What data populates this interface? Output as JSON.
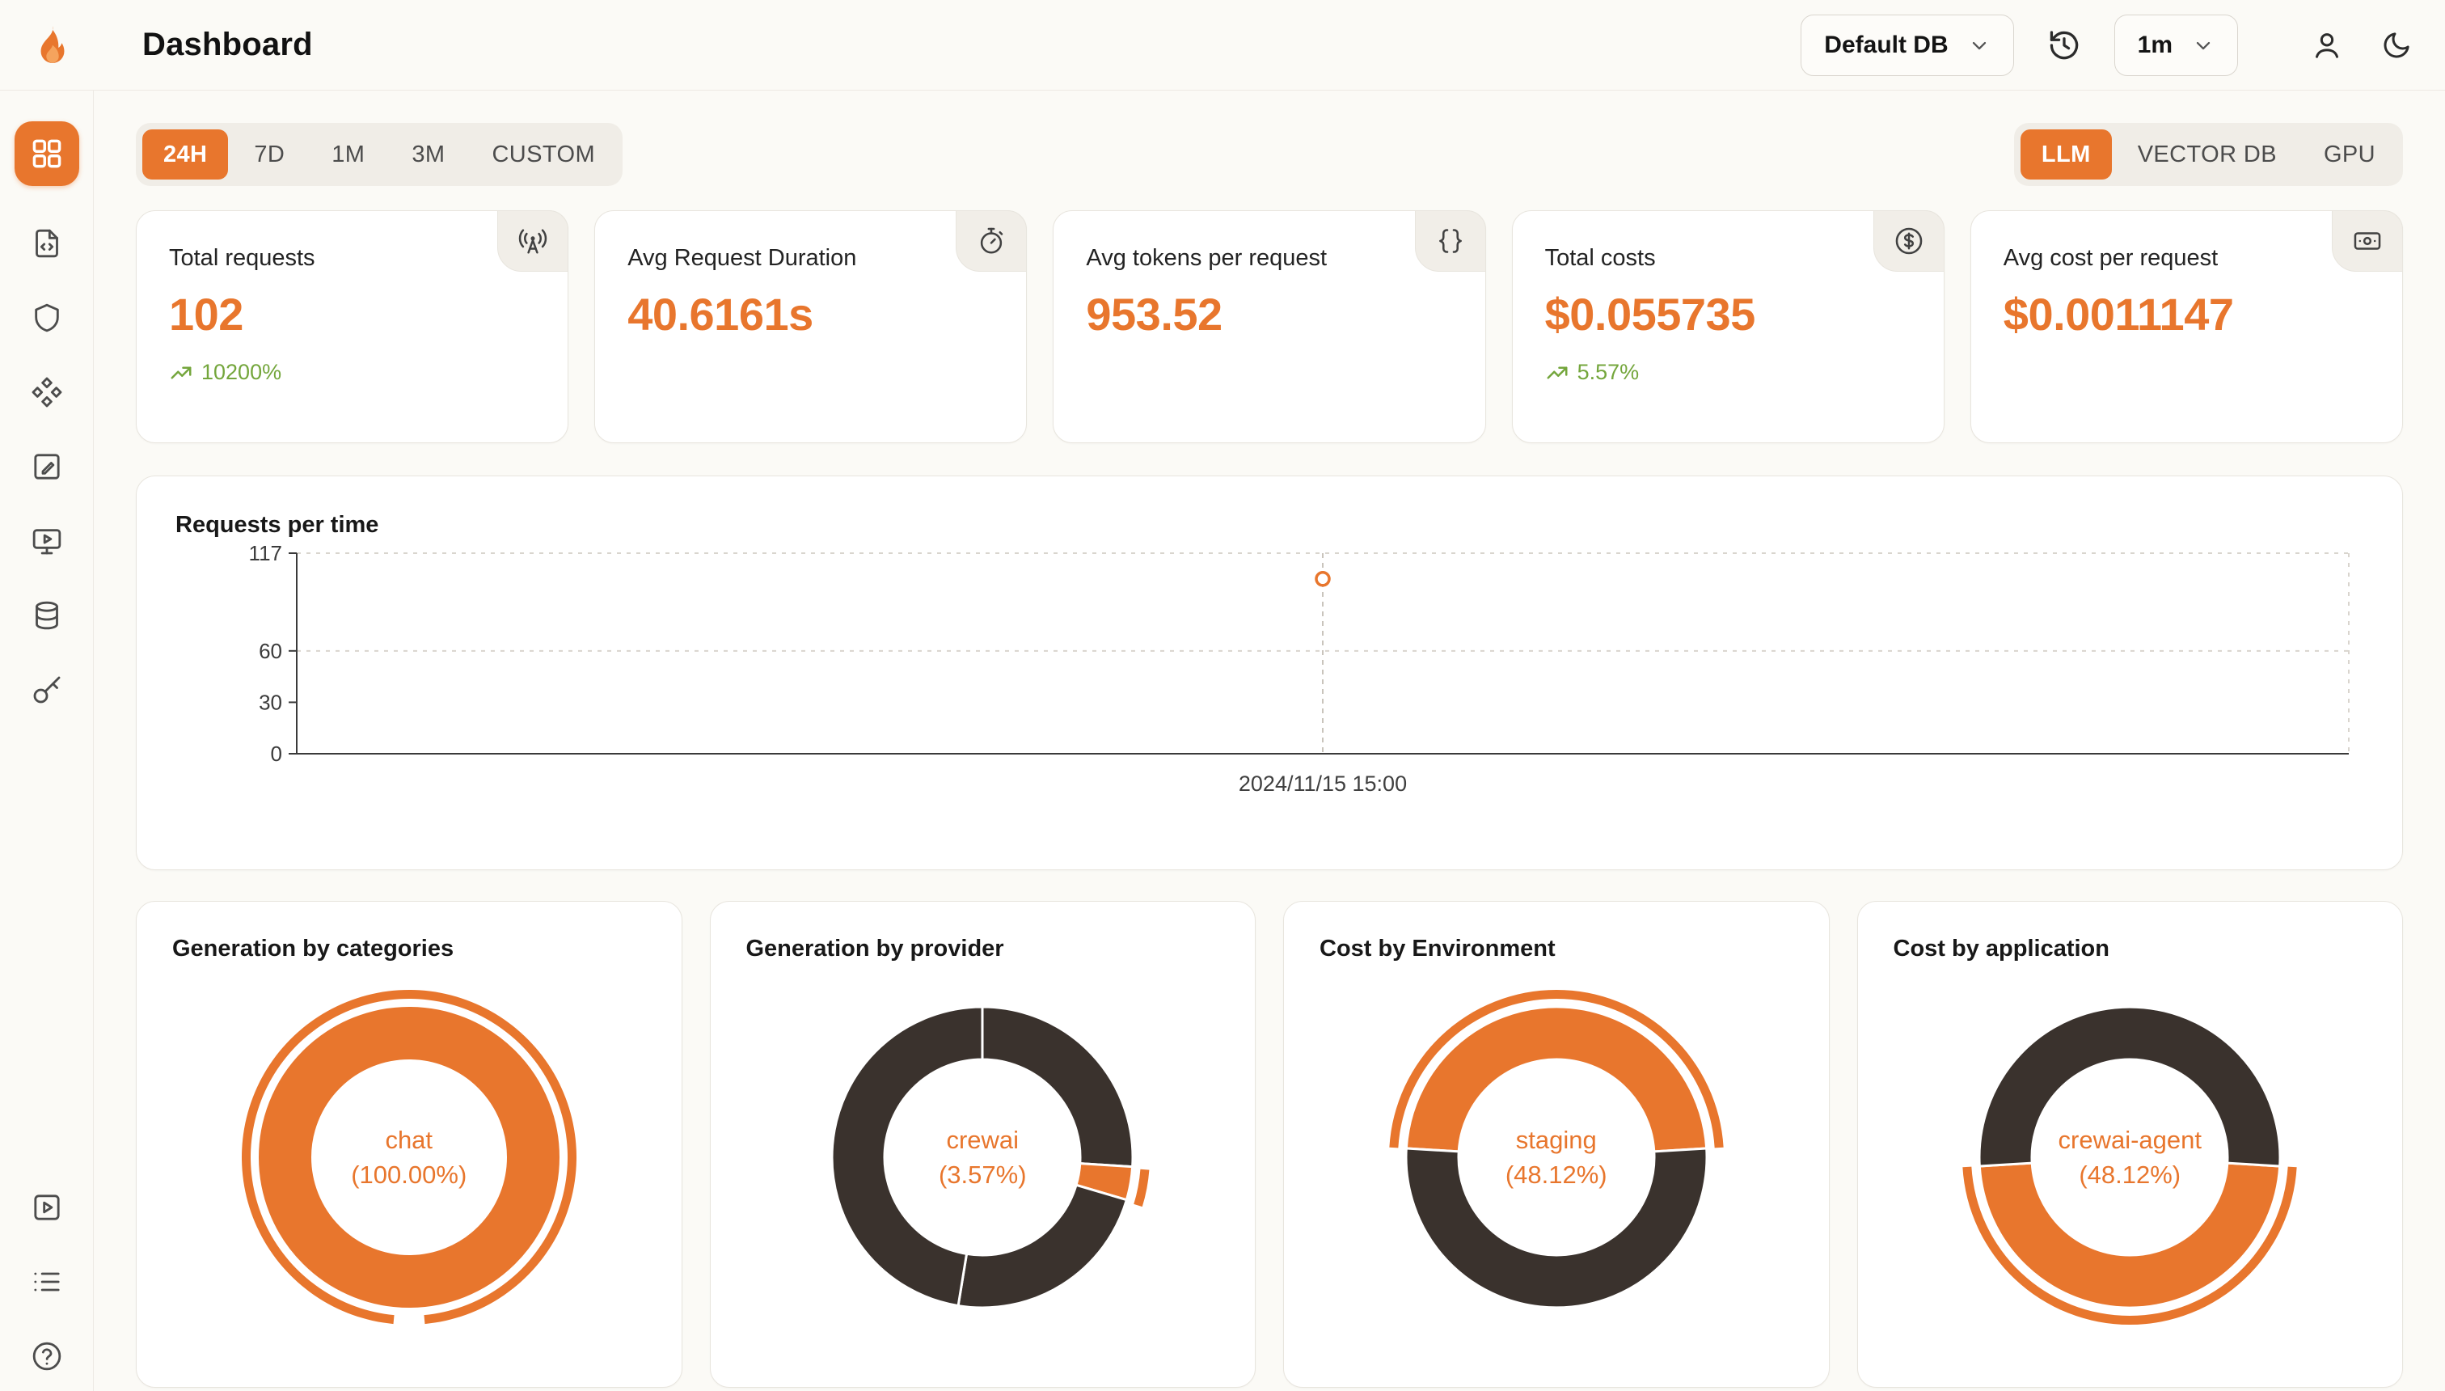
{
  "app": {
    "title": "Dashboard"
  },
  "colors": {
    "accent": "#E8762D",
    "dark_segment": "#3A322D",
    "positive": "#74A63C"
  },
  "header": {
    "db_selector": {
      "value": "Default DB",
      "icon": "chevron-down-icon"
    },
    "history_button": {
      "icon": "history-icon"
    },
    "interval_selector": {
      "value": "1m",
      "icon": "chevron-down-icon"
    },
    "user_button": {
      "icon": "user-icon"
    },
    "theme_button": {
      "icon": "moon-icon"
    }
  },
  "sidebar": {
    "items": [
      {
        "icon": "grid-icon",
        "active": true
      },
      {
        "icon": "file-code-icon",
        "active": false
      },
      {
        "icon": "shield-icon",
        "active": false
      },
      {
        "icon": "shapes-icon",
        "active": false
      },
      {
        "icon": "clipboard-edit-icon",
        "active": false
      },
      {
        "icon": "monitor-play-icon",
        "active": false
      },
      {
        "icon": "database-icon",
        "active": false
      },
      {
        "icon": "key-icon",
        "active": false
      }
    ],
    "bottom_items": [
      {
        "icon": "play-square-icon"
      },
      {
        "icon": "list-icon"
      },
      {
        "icon": "help-circle-icon"
      }
    ]
  },
  "filters": {
    "time_ranges": [
      {
        "label": "24H",
        "active": true
      },
      {
        "label": "7D",
        "active": false
      },
      {
        "label": "1M",
        "active": false
      },
      {
        "label": "3M",
        "active": false
      },
      {
        "label": "CUSTOM",
        "active": false
      }
    ],
    "resources": [
      {
        "label": "LLM",
        "active": true
      },
      {
        "label": "VECTOR DB",
        "active": false
      },
      {
        "label": "GPU",
        "active": false
      }
    ]
  },
  "stat_cards": [
    {
      "label": "Total requests",
      "value": "102",
      "delta": "10200%",
      "icon": "radio-tower-icon"
    },
    {
      "label": "Avg Request Duration",
      "value": "40.6161s",
      "icon": "stopwatch-icon"
    },
    {
      "label": "Avg tokens per request",
      "value": "953.52",
      "icon": "braces-icon"
    },
    {
      "label": "Total costs",
      "value": "$0.055735",
      "delta": "5.57%",
      "icon": "circle-dollar-icon"
    },
    {
      "label": "Avg cost per request",
      "value": "$0.0011147",
      "icon": "banknote-icon"
    }
  ],
  "chart_data": [
    {
      "type": "line",
      "title": "Requests per time",
      "xlabel": "",
      "ylabel": "",
      "ylim": [
        0,
        117
      ],
      "y_ticks": [
        0,
        30,
        60,
        117
      ],
      "grid_ticks": [
        60,
        117
      ],
      "grid": "dashed",
      "series": [
        {
          "name": "requests",
          "points": [
            {
              "x_label": "2024/11/15 15:00",
              "x_frac": 0.5,
              "value": 102
            }
          ]
        }
      ]
    },
    {
      "type": "pie",
      "title": "Generation by categories",
      "center_label": "chat",
      "center_value": "(100.00%)",
      "rotation": 0.515,
      "segments": [
        {
          "name": "chat",
          "frac": 1.0,
          "color": "#E8762D"
        }
      ],
      "highlight": {
        "start": 0.515,
        "end": 1.485
      }
    },
    {
      "type": "pie",
      "title": "Generation by provider",
      "center_label": "crewai",
      "center_value": "(3.57%)",
      "rotation": 0,
      "segments": [
        {
          "name": "other",
          "frac": 0.26,
          "color": "#3A322D"
        },
        {
          "name": "crewai",
          "frac": 0.0357,
          "color": "#E8762D"
        },
        {
          "name": "other",
          "frac": 0.23,
          "color": "#3A322D"
        },
        {
          "name": "other",
          "frac": 0.4743,
          "color": "#3A322D"
        }
      ],
      "highlight": {
        "start": 0.262,
        "end": 0.2977
      }
    },
    {
      "type": "pie",
      "title": "Cost by Environment",
      "center_label": "staging",
      "center_value": "(48.12%)",
      "rotation": 0.7594,
      "segments": [
        {
          "name": "staging",
          "frac": 0.4812,
          "color": "#E8762D"
        },
        {
          "name": "other",
          "frac": 0.5188,
          "color": "#3A322D"
        }
      ],
      "highlight": {
        "start": 0.7594,
        "end": 1.2406
      }
    },
    {
      "type": "pie",
      "title": "Cost by application",
      "center_label": "crewai-agent",
      "center_value": "(48.12%)",
      "rotation": 0.2594,
      "segments": [
        {
          "name": "crewai-agent",
          "frac": 0.4812,
          "color": "#E8762D"
        },
        {
          "name": "other",
          "frac": 0.5188,
          "color": "#3A322D"
        }
      ],
      "highlight": {
        "start": 0.2594,
        "end": 0.7406
      }
    }
  ]
}
